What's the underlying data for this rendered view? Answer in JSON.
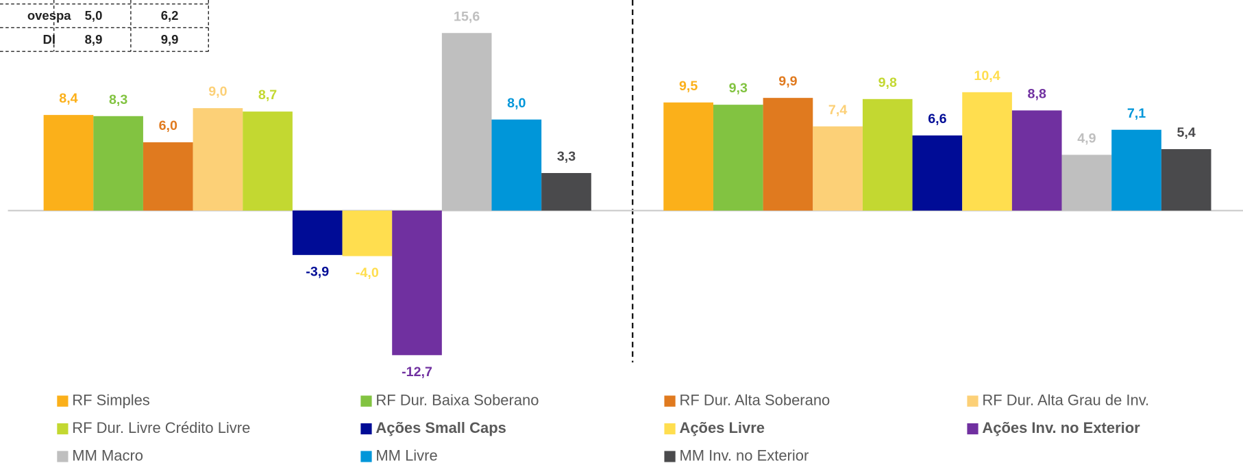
{
  "table": {
    "rows": [
      [
        "ovespa",
        "5,0",
        "6,2"
      ],
      [
        "DI",
        "8,9",
        "9,9"
      ]
    ]
  },
  "chart_data": {
    "type": "bar",
    "categories": [
      null,
      null
    ],
    "ylim": [
      -13.5,
      18.5
    ],
    "series": [
      {
        "name": "RF Simples",
        "color": "#fbb01a",
        "values": [
          8.4,
          9.5
        ],
        "value_labels": [
          "8,4",
          "9,5"
        ]
      },
      {
        "name": "RF Dur. Baixa Soberano",
        "color": "#82c341",
        "values": [
          8.3,
          9.3
        ],
        "value_labels": [
          "8,3",
          "9,3"
        ]
      },
      {
        "name": "RF Dur. Alta Soberano",
        "color": "#e07a1f",
        "values": [
          6.0,
          9.9
        ],
        "value_labels": [
          "6,0",
          "9,9"
        ]
      },
      {
        "name": "RF Dur. Alta Grau de Inv.",
        "color": "#fcd077",
        "values": [
          9.0,
          7.4
        ],
        "value_labels": [
          "9,0",
          "7,4"
        ]
      },
      {
        "name": "RF Dur. Livre Crédito Livre",
        "color": "#c3d831",
        "values": [
          8.7,
          9.8
        ],
        "value_labels": [
          "8,7",
          "9,8"
        ]
      },
      {
        "name": "Ações Small Caps",
        "color": "#000c96",
        "bold": true,
        "values": [
          -3.9,
          6.6
        ],
        "value_labels": [
          "-3,9",
          "6,6"
        ]
      },
      {
        "name": "Ações Livre",
        "color": "#ffde4f",
        "bold": true,
        "values": [
          -4.0,
          10.4
        ],
        "value_labels": [
          "-4,0",
          "10,4"
        ]
      },
      {
        "name": "Ações Inv. no Exterior",
        "color": "#7030a0",
        "bold": true,
        "values": [
          -12.7,
          8.8
        ],
        "value_labels": [
          "-12,7",
          "8,8"
        ]
      },
      {
        "name": "MM Macro",
        "color": "#bfbfbf",
        "values": [
          15.6,
          4.9
        ],
        "value_labels": [
          "15,6",
          "4,9"
        ]
      },
      {
        "name": "MM Livre",
        "color": "#0096d9",
        "values": [
          8.0,
          7.1
        ],
        "value_labels": [
          "8,0",
          "7,1"
        ]
      },
      {
        "name": "MM Inv. no Exterior",
        "color": "#4a4a4c",
        "values": [
          3.3,
          5.4
        ],
        "value_labels": [
          "3,3",
          "5,4"
        ]
      }
    ]
  }
}
